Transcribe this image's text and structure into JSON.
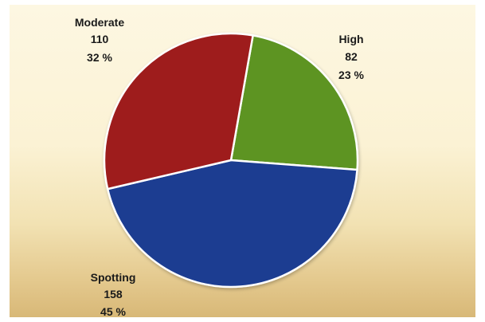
{
  "chart_data": {
    "type": "pie",
    "title": "",
    "legend": "none",
    "slices": [
      {
        "label": "High",
        "value": 82,
        "percent": "23 %",
        "color": "#5d9424"
      },
      {
        "label": "Spotting",
        "value": 158,
        "percent": "45 %",
        "color": "#1c3c91"
      },
      {
        "label": "Moderate",
        "value": 110,
        "percent": "32 %",
        "color": "#9e1a1a"
      }
    ]
  }
}
